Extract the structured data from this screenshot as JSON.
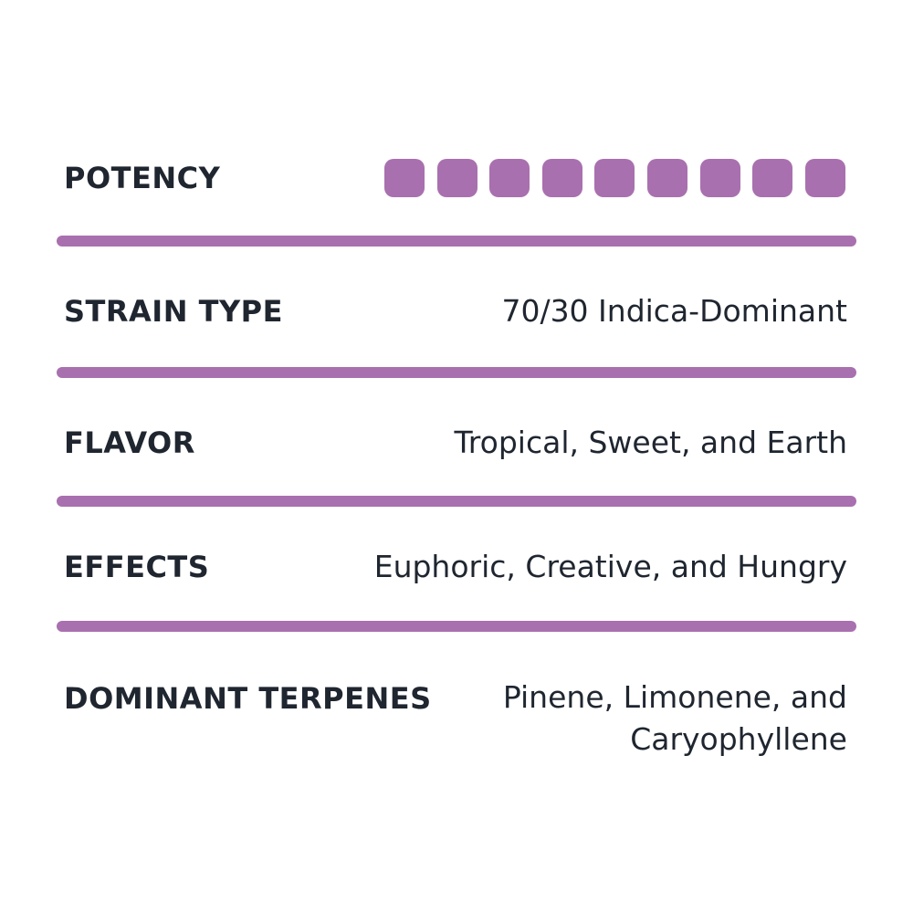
{
  "accent_color": "#A970AF",
  "rows": [
    {
      "label": "POTENCY",
      "potency": {
        "filled": 9,
        "total": 9
      }
    },
    {
      "label": "STRAIN TYPE",
      "value": "70/30 Indica-Dominant"
    },
    {
      "label": "FLAVOR",
      "value": "Tropical, Sweet, and Earth"
    },
    {
      "label": "EFFECTS",
      "value": "Euphoric, Creative, and Hungry"
    },
    {
      "label": "DOMINANT TERPENES",
      "value_lines": [
        "Pinene, Limonene, and",
        "Caryophyllene"
      ]
    }
  ]
}
